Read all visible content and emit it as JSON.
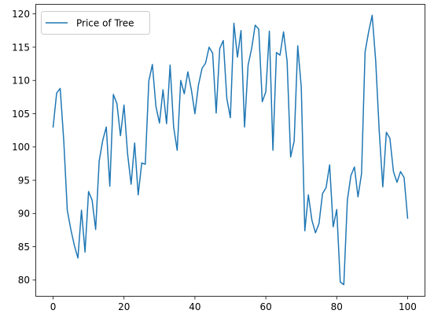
{
  "chart_data": {
    "type": "line",
    "title": "",
    "xlabel": "",
    "ylabel": "",
    "xlim": [
      -5,
      105
    ],
    "ylim": [
      77.5,
      121.5
    ],
    "x_ticks": [
      0,
      20,
      40,
      60,
      80,
      100
    ],
    "y_ticks": [
      80,
      85,
      90,
      95,
      100,
      105,
      110,
      115,
      120
    ],
    "grid": false,
    "legend": {
      "position": "upper-left",
      "entries": [
        "Price of Tree"
      ]
    },
    "series": [
      {
        "name": "Price of Tree",
        "color": "#1f77b4",
        "x": [
          0,
          1,
          2,
          3,
          4,
          5,
          6,
          7,
          8,
          9,
          10,
          11,
          12,
          13,
          14,
          15,
          16,
          17,
          18,
          19,
          20,
          21,
          22,
          23,
          24,
          25,
          26,
          27,
          28,
          29,
          30,
          31,
          32,
          33,
          34,
          35,
          36,
          37,
          38,
          39,
          40,
          41,
          42,
          43,
          44,
          45,
          46,
          47,
          48,
          49,
          50,
          51,
          52,
          53,
          54,
          55,
          56,
          57,
          58,
          59,
          60,
          61,
          62,
          63,
          64,
          65,
          66,
          67,
          68,
          69,
          70,
          71,
          72,
          73,
          74,
          75,
          76,
          77,
          78,
          79,
          80,
          81,
          82,
          83,
          84,
          85,
          86,
          87,
          88,
          89,
          90,
          91,
          92,
          93,
          94,
          95,
          96,
          97,
          98,
          99,
          100
        ],
        "values": [
          103.0,
          108.1,
          108.8,
          101.0,
          90.5,
          87.6,
          85.2,
          83.3,
          90.5,
          84.2,
          93.3,
          92.0,
          87.6,
          97.9,
          101.0,
          103.0,
          94.1,
          107.9,
          106.5,
          101.7,
          106.3,
          99.0,
          94.4,
          100.6,
          92.8,
          97.6,
          97.4,
          109.9,
          112.4,
          106.1,
          103.6,
          108.6,
          103.5,
          112.3,
          103.0,
          99.5,
          110.0,
          108.0,
          111.3,
          108.6,
          105.0,
          109.3,
          111.8,
          112.6,
          115.0,
          114.1,
          105.1,
          114.8,
          116.0,
          107.3,
          104.4,
          118.6,
          113.5,
          117.5,
          103.0,
          112.3,
          114.8,
          118.3,
          117.7,
          106.8,
          108.3,
          117.4,
          99.5,
          114.2,
          113.8,
          117.3,
          112.9,
          98.5,
          100.9,
          115.2,
          109.0,
          87.4,
          92.8,
          89.0,
          87.1,
          88.5,
          93.0,
          93.9,
          97.3,
          88.0,
          90.6,
          79.7,
          79.3,
          92.0,
          95.7,
          97.0,
          92.5,
          96.0,
          114.3,
          117.3,
          119.8,
          112.9,
          102.3,
          94.0,
          102.2,
          101.3,
          96.3,
          94.7,
          96.3,
          95.4,
          89.3
        ]
      }
    ]
  }
}
